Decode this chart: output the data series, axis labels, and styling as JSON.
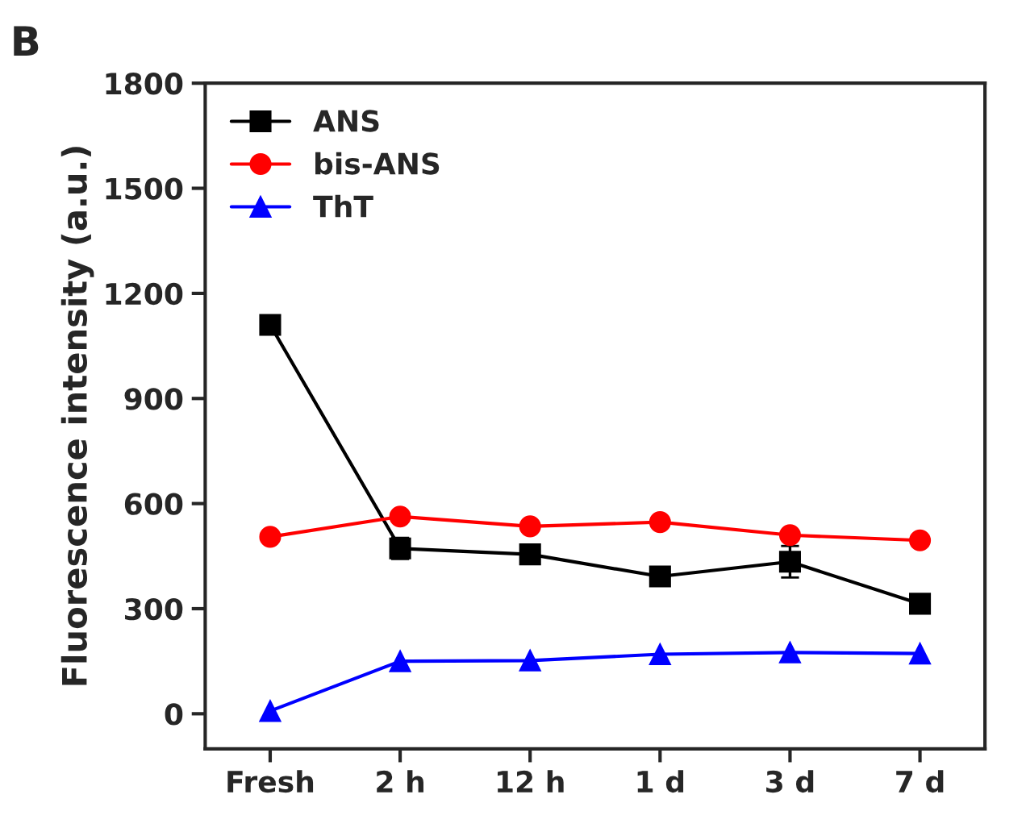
{
  "chart_data": {
    "type": "line",
    "ylabel": "Fluorescence intensity (a.u.)",
    "annotations": [
      "B"
    ],
    "categories": [
      "Fresh",
      "2 h",
      "12 h",
      "1 d",
      "3 d",
      "7 d"
    ],
    "series": [
      {
        "name": "ANS",
        "color": "#000000",
        "marker": "square",
        "values": [
          1110,
          472,
          455,
          392,
          434,
          314
        ],
        "errors": [
          null,
          30,
          25,
          15,
          45,
          15
        ]
      },
      {
        "name": "bis-ANS",
        "color": "#ff0000",
        "marker": "circle",
        "values": [
          505,
          563,
          535,
          547,
          510,
          495
        ]
      },
      {
        "name": "ThT",
        "color": "#0000ff",
        "marker": "triangle",
        "values": [
          8,
          150,
          152,
          170,
          175,
          172
        ]
      }
    ],
    "ylim": [
      -100,
      1800
    ],
    "yticks": [
      0,
      300,
      600,
      900,
      1200,
      1500,
      1800
    ],
    "legend": "top left",
    "grid": false
  }
}
